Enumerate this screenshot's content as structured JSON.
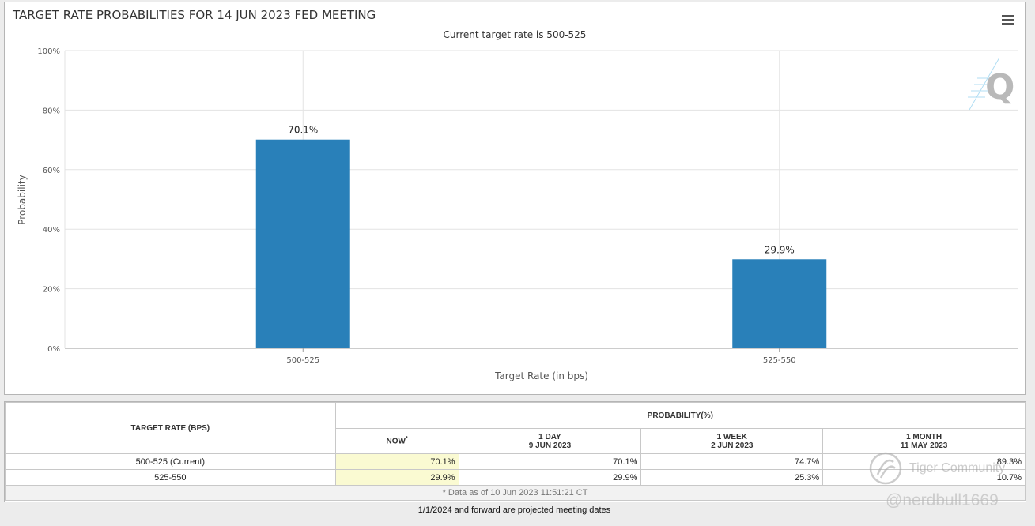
{
  "chart_data": {
    "type": "bar",
    "title": "TARGET RATE PROBABILITIES FOR 14 JUN 2023 FED MEETING",
    "subtitle": "Current target rate is 500-525",
    "xlabel": "Target Rate (in bps)",
    "ylabel": "Probability",
    "categories": [
      "500-525",
      "525-550"
    ],
    "values": [
      70.1,
      29.9
    ],
    "data_labels": [
      "70.1%",
      "29.9%"
    ],
    "ylim": [
      0,
      100
    ],
    "yticks": [
      0,
      20,
      40,
      60,
      80,
      100
    ],
    "ytick_labels": [
      "0%",
      "20%",
      "40%",
      "60%",
      "80%",
      "100%"
    ],
    "grid": true,
    "bar_color": "#2980b9"
  },
  "menu": {
    "icon": "hamburger-menu-icon"
  },
  "table": {
    "target_header": "TARGET RATE (BPS)",
    "prob_header": "PROBABILITY(%)",
    "columns": [
      {
        "line1": "NOW",
        "line2": "",
        "sup": "*"
      },
      {
        "line1": "1 DAY",
        "line2": "9 JUN 2023"
      },
      {
        "line1": "1 WEEK",
        "line2": "2 JUN 2023"
      },
      {
        "line1": "1 MONTH",
        "line2": "11 MAY 2023"
      }
    ],
    "rows": [
      {
        "rate": "500-525 (Current)",
        "values": [
          "70.1%",
          "70.1%",
          "74.7%",
          "89.3%"
        ]
      },
      {
        "rate": "525-550",
        "values": [
          "29.9%",
          "29.9%",
          "25.3%",
          "10.7%"
        ]
      }
    ],
    "footnote": "* Data as of 10 Jun 2023 11:51:21 CT"
  },
  "projected_note": "1/1/2024 and forward are projected meeting dates",
  "watermarks": {
    "tiger": "Tiger Community",
    "handle": "@nerdbull1669"
  }
}
